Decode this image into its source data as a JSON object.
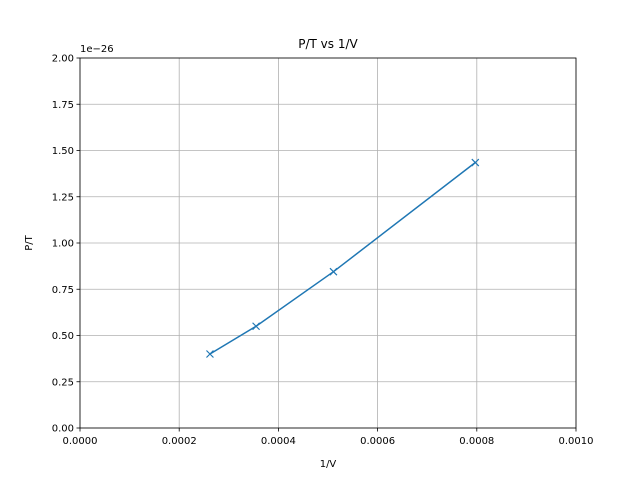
{
  "chart_data": {
    "type": "line",
    "title": "P/T vs 1/V",
    "xlabel": "1/V",
    "ylabel": "P/T",
    "y_offset_label": "1e−26",
    "xlim": [
      0.0,
      0.001
    ],
    "ylim": [
      0.0,
      2.0
    ],
    "x_ticks": [
      0.0,
      0.0002,
      0.0004,
      0.0006,
      0.0008,
      0.001
    ],
    "x_tick_labels": [
      "0.0000",
      "0.0002",
      "0.0004",
      "0.0006",
      "0.0008",
      "0.0010"
    ],
    "y_ticks": [
      0.0,
      0.25,
      0.5,
      0.75,
      1.0,
      1.25,
      1.5,
      1.75,
      2.0
    ],
    "y_tick_labels": [
      "0.00",
      "0.25",
      "0.50",
      "0.75",
      "1.00",
      "1.25",
      "1.50",
      "1.75",
      "2.00"
    ],
    "grid": true,
    "marker": "x",
    "series": [
      {
        "name": "P/T",
        "color": "#1f77b4",
        "x": [
          0.000262,
          0.000355,
          0.000511,
          0.000797
        ],
        "y": [
          0.4,
          0.55,
          0.845,
          1.435
        ]
      }
    ]
  }
}
